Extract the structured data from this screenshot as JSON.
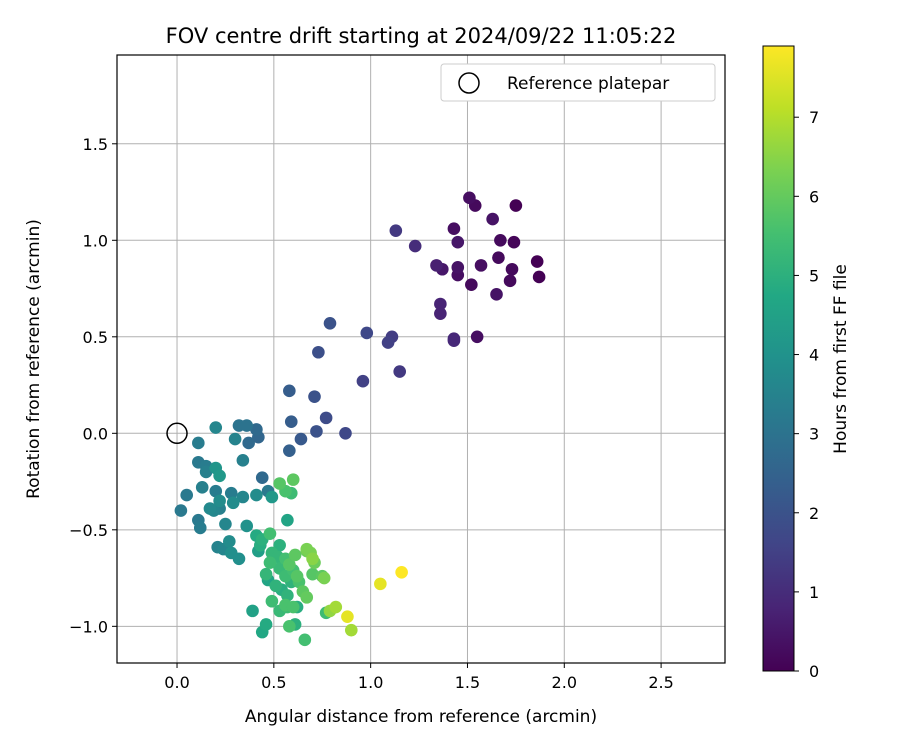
{
  "chart_data": {
    "type": "scatter",
    "title": "FOV centre drift starting at 2024/09/22 11:05:22",
    "xlabel": "Angular distance from reference (arcmin)",
    "ylabel": "Rotation from reference (arcmin)",
    "xlim": [
      -0.31,
      2.83
    ],
    "ylim": [
      -1.19,
      1.96
    ],
    "xticks": [
      0.0,
      0.5,
      1.0,
      1.5,
      2.0,
      2.5
    ],
    "xtick_labels": [
      "0.0",
      "0.5",
      "1.0",
      "1.5",
      "2.0",
      "2.5"
    ],
    "yticks": [
      -1.0,
      -0.5,
      0.0,
      0.5,
      1.0,
      1.5
    ],
    "ytick_labels": [
      "−1.0",
      "−0.5",
      "0.0",
      "0.5",
      "1.0",
      "1.5"
    ],
    "grid": true,
    "legend": {
      "position": "top-right",
      "entries": [
        "Reference platepar"
      ]
    },
    "reference_point": {
      "x": 0.0,
      "y": 0.0,
      "label": "Reference platepar"
    },
    "colorbar": {
      "label": "Hours from first FF file",
      "range": [
        0,
        7.9
      ],
      "ticks": [
        0,
        1,
        2,
        3,
        4,
        5,
        6,
        7
      ],
      "tick_labels": [
        "0",
        "1",
        "2",
        "3",
        "4",
        "5",
        "6",
        "7"
      ],
      "colormap": "viridis"
    },
    "points": [
      {
        "x": 1.51,
        "y": 1.22,
        "t": 0.3
      },
      {
        "x": 1.54,
        "y": 1.18,
        "t": 0.2
      },
      {
        "x": 1.75,
        "y": 1.18,
        "t": 0.0
      },
      {
        "x": 1.63,
        "y": 1.11,
        "t": 0.4
      },
      {
        "x": 1.43,
        "y": 1.06,
        "t": 0.3
      },
      {
        "x": 1.13,
        "y": 1.05,
        "t": 1.3
      },
      {
        "x": 1.45,
        "y": 0.99,
        "t": 0.5
      },
      {
        "x": 1.67,
        "y": 1.0,
        "t": 0.2
      },
      {
        "x": 1.74,
        "y": 0.99,
        "t": 0.1
      },
      {
        "x": 1.23,
        "y": 0.97,
        "t": 1.0
      },
      {
        "x": 1.66,
        "y": 0.91,
        "t": 0.2
      },
      {
        "x": 1.86,
        "y": 0.89,
        "t": 0.0
      },
      {
        "x": 1.34,
        "y": 0.87,
        "t": 0.7
      },
      {
        "x": 1.37,
        "y": 0.85,
        "t": 0.5
      },
      {
        "x": 1.45,
        "y": 0.86,
        "t": 0.4
      },
      {
        "x": 1.45,
        "y": 0.82,
        "t": 0.3
      },
      {
        "x": 1.57,
        "y": 0.87,
        "t": 0.3
      },
      {
        "x": 1.73,
        "y": 0.85,
        "t": 0.2
      },
      {
        "x": 1.87,
        "y": 0.81,
        "t": 0.0
      },
      {
        "x": 1.52,
        "y": 0.77,
        "t": 0.2
      },
      {
        "x": 1.72,
        "y": 0.79,
        "t": 0.2
      },
      {
        "x": 1.65,
        "y": 0.72,
        "t": 0.4
      },
      {
        "x": 1.36,
        "y": 0.67,
        "t": 0.8
      },
      {
        "x": 1.36,
        "y": 0.62,
        "t": 0.8
      },
      {
        "x": 1.43,
        "y": 0.49,
        "t": 0.9
      },
      {
        "x": 1.43,
        "y": 0.48,
        "t": 0.9
      },
      {
        "x": 1.55,
        "y": 0.5,
        "t": 0.3
      },
      {
        "x": 0.79,
        "y": 0.57,
        "t": 2.0
      },
      {
        "x": 0.98,
        "y": 0.52,
        "t": 1.7
      },
      {
        "x": 1.11,
        "y": 0.5,
        "t": 1.4
      },
      {
        "x": 1.09,
        "y": 0.47,
        "t": 1.5
      },
      {
        "x": 0.73,
        "y": 0.42,
        "t": 1.9
      },
      {
        "x": 1.15,
        "y": 0.32,
        "t": 1.3
      },
      {
        "x": 0.96,
        "y": 0.27,
        "t": 1.5
      },
      {
        "x": 0.58,
        "y": 0.22,
        "t": 2.3
      },
      {
        "x": 0.71,
        "y": 0.19,
        "t": 2.0
      },
      {
        "x": 0.77,
        "y": 0.08,
        "t": 1.8
      },
      {
        "x": 0.59,
        "y": 0.06,
        "t": 2.3
      },
      {
        "x": 0.72,
        "y": 0.01,
        "t": 2.0
      },
      {
        "x": 0.87,
        "y": 0.0,
        "t": 1.7
      },
      {
        "x": 0.64,
        "y": -0.03,
        "t": 2.2
      },
      {
        "x": 0.58,
        "y": -0.09,
        "t": 2.4
      },
      {
        "x": 0.32,
        "y": 0.04,
        "t": 3.0
      },
      {
        "x": 0.36,
        "y": 0.04,
        "t": 3.0
      },
      {
        "x": 0.41,
        "y": 0.02,
        "t": 2.7
      },
      {
        "x": 0.42,
        "y": -0.02,
        "t": 2.6
      },
      {
        "x": 0.37,
        "y": -0.05,
        "t": 2.7
      },
      {
        "x": 0.2,
        "y": 0.03,
        "t": 3.6
      },
      {
        "x": 0.3,
        "y": -0.03,
        "t": 3.5
      },
      {
        "x": 0.11,
        "y": -0.05,
        "t": 3.3
      },
      {
        "x": 0.34,
        "y": -0.14,
        "t": 3.4
      },
      {
        "x": 0.11,
        "y": -0.15,
        "t": 3.2
      },
      {
        "x": 0.15,
        "y": -0.17,
        "t": 3.3
      },
      {
        "x": 0.15,
        "y": -0.2,
        "t": 3.4
      },
      {
        "x": 0.2,
        "y": -0.18,
        "t": 4.1
      },
      {
        "x": 0.22,
        "y": -0.22,
        "t": 4.2
      },
      {
        "x": 0.44,
        "y": -0.23,
        "t": 2.7
      },
      {
        "x": 0.13,
        "y": -0.28,
        "t": 3.4
      },
      {
        "x": 0.2,
        "y": -0.3,
        "t": 3.3
      },
      {
        "x": 0.05,
        "y": -0.32,
        "t": 3.2
      },
      {
        "x": 0.28,
        "y": -0.31,
        "t": 3.3
      },
      {
        "x": 0.34,
        "y": -0.33,
        "t": 3.6
      },
      {
        "x": 0.41,
        "y": -0.32,
        "t": 3.8
      },
      {
        "x": 0.47,
        "y": -0.3,
        "t": 3.2
      },
      {
        "x": 0.49,
        "y": -0.33,
        "t": 4.2
      },
      {
        "x": 0.59,
        "y": -0.31,
        "t": 5.4
      },
      {
        "x": 0.56,
        "y": -0.3,
        "t": 5.6
      },
      {
        "x": 0.53,
        "y": -0.26,
        "t": 5.8
      },
      {
        "x": 0.6,
        "y": -0.24,
        "t": 5.9
      },
      {
        "x": 0.29,
        "y": -0.36,
        "t": 3.8
      },
      {
        "x": 0.22,
        "y": -0.35,
        "t": 3.8
      },
      {
        "x": 0.17,
        "y": -0.39,
        "t": 3.7
      },
      {
        "x": 0.19,
        "y": -0.4,
        "t": 3.6
      },
      {
        "x": 0.22,
        "y": -0.39,
        "t": 3.4
      },
      {
        "x": 0.02,
        "y": -0.4,
        "t": 3.2
      },
      {
        "x": 0.11,
        "y": -0.45,
        "t": 3.2
      },
      {
        "x": 0.12,
        "y": -0.49,
        "t": 3.3
      },
      {
        "x": 0.25,
        "y": -0.47,
        "t": 3.6
      },
      {
        "x": 0.36,
        "y": -0.48,
        "t": 4.0
      },
      {
        "x": 0.57,
        "y": -0.45,
        "t": 4.6
      },
      {
        "x": 0.41,
        "y": -0.53,
        "t": 4.8
      },
      {
        "x": 0.44,
        "y": -0.55,
        "t": 5.0
      },
      {
        "x": 0.48,
        "y": -0.52,
        "t": 5.5
      },
      {
        "x": 0.27,
        "y": -0.56,
        "t": 3.8
      },
      {
        "x": 0.21,
        "y": -0.59,
        "t": 3.5
      },
      {
        "x": 0.24,
        "y": -0.6,
        "t": 3.6
      },
      {
        "x": 0.28,
        "y": -0.62,
        "t": 3.9
      },
      {
        "x": 0.32,
        "y": -0.65,
        "t": 3.9
      },
      {
        "x": 0.42,
        "y": -0.61,
        "t": 4.4
      },
      {
        "x": 0.43,
        "y": -0.58,
        "t": 4.9
      },
      {
        "x": 0.53,
        "y": -0.58,
        "t": 5.0
      },
      {
        "x": 0.49,
        "y": -0.62,
        "t": 5.2
      },
      {
        "x": 0.52,
        "y": -0.64,
        "t": 5.2
      },
      {
        "x": 0.48,
        "y": -0.67,
        "t": 5.4
      },
      {
        "x": 0.56,
        "y": -0.65,
        "t": 5.5
      },
      {
        "x": 0.58,
        "y": -0.68,
        "t": 5.8
      },
      {
        "x": 0.61,
        "y": -0.63,
        "t": 5.9
      },
      {
        "x": 0.67,
        "y": -0.61,
        "t": 6.1
      },
      {
        "x": 0.69,
        "y": -0.62,
        "t": 6.3
      },
      {
        "x": 0.67,
        "y": -0.6,
        "t": 6.3
      },
      {
        "x": 0.7,
        "y": -0.65,
        "t": 6.5
      },
      {
        "x": 0.71,
        "y": -0.67,
        "t": 6.1
      },
      {
        "x": 0.53,
        "y": -0.7,
        "t": 5.3
      },
      {
        "x": 0.6,
        "y": -0.71,
        "t": 5.5
      },
      {
        "x": 0.46,
        "y": -0.73,
        "t": 5.2
      },
      {
        "x": 0.56,
        "y": -0.74,
        "t": 5.4
      },
      {
        "x": 0.62,
        "y": -0.74,
        "t": 5.8
      },
      {
        "x": 0.7,
        "y": -0.73,
        "t": 5.8
      },
      {
        "x": 0.75,
        "y": -0.74,
        "t": 5.9
      },
      {
        "x": 0.76,
        "y": -0.75,
        "t": 6.3
      },
      {
        "x": 0.47,
        "y": -0.76,
        "t": 4.6
      },
      {
        "x": 0.51,
        "y": -0.79,
        "t": 5.1
      },
      {
        "x": 0.59,
        "y": -0.77,
        "t": 5.1
      },
      {
        "x": 0.63,
        "y": -0.77,
        "t": 5.6
      },
      {
        "x": 0.65,
        "y": -0.82,
        "t": 5.9
      },
      {
        "x": 0.54,
        "y": -0.81,
        "t": 4.9
      },
      {
        "x": 0.57,
        "y": -0.84,
        "t": 5.1
      },
      {
        "x": 0.67,
        "y": -0.85,
        "t": 6.0
      },
      {
        "x": 0.49,
        "y": -0.87,
        "t": 5.4
      },
      {
        "x": 0.56,
        "y": -0.89,
        "t": 5.6
      },
      {
        "x": 0.62,
        "y": -0.9,
        "t": 4.9
      },
      {
        "x": 0.39,
        "y": -0.92,
        "t": 4.5
      },
      {
        "x": 0.53,
        "y": -0.92,
        "t": 5.3
      },
      {
        "x": 0.57,
        "y": -0.9,
        "t": 5.4
      },
      {
        "x": 0.6,
        "y": -0.9,
        "t": 5.6
      },
      {
        "x": 0.77,
        "y": -0.93,
        "t": 5.4
      },
      {
        "x": 0.79,
        "y": -0.92,
        "t": 6.6
      },
      {
        "x": 0.82,
        "y": -0.9,
        "t": 6.8
      },
      {
        "x": 0.88,
        "y": -0.95,
        "t": 7.6
      },
      {
        "x": 0.46,
        "y": -0.99,
        "t": 4.8
      },
      {
        "x": 0.58,
        "y": -1.0,
        "t": 5.6
      },
      {
        "x": 0.61,
        "y": -0.99,
        "t": 5.0
      },
      {
        "x": 0.44,
        "y": -1.03,
        "t": 4.7
      },
      {
        "x": 0.66,
        "y": -1.07,
        "t": 5.5
      },
      {
        "x": 0.9,
        "y": -1.02,
        "t": 6.8
      },
      {
        "x": 1.05,
        "y": -0.78,
        "t": 7.6
      },
      {
        "x": 1.16,
        "y": -0.72,
        "t": 7.9
      }
    ]
  }
}
